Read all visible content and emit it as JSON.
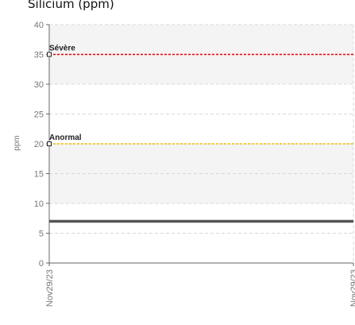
{
  "chart_data": {
    "type": "line",
    "title": "Silicium (ppm)",
    "ylabel": "ppm",
    "xlabel": "",
    "ylim": [
      0,
      40
    ],
    "y_ticks": [
      0,
      5,
      10,
      15,
      20,
      25,
      30,
      35,
      40
    ],
    "x_tick_labels": [
      "Nov29/23",
      "Nov29/23"
    ],
    "bands": [
      {
        "from": 10,
        "to": 20,
        "color": "#f4f4f4"
      },
      {
        "from": 30,
        "to": 40,
        "color": "#f4f4f4"
      }
    ],
    "reference_lines": [
      {
        "label": "Sévère",
        "value": 35,
        "color": "#ee0000"
      },
      {
        "label": "Anormal",
        "value": 20,
        "color": "#f0c000"
      }
    ],
    "series": [
      {
        "values": [
          7,
          7
        ],
        "color": "#555555"
      }
    ],
    "grid": true
  }
}
